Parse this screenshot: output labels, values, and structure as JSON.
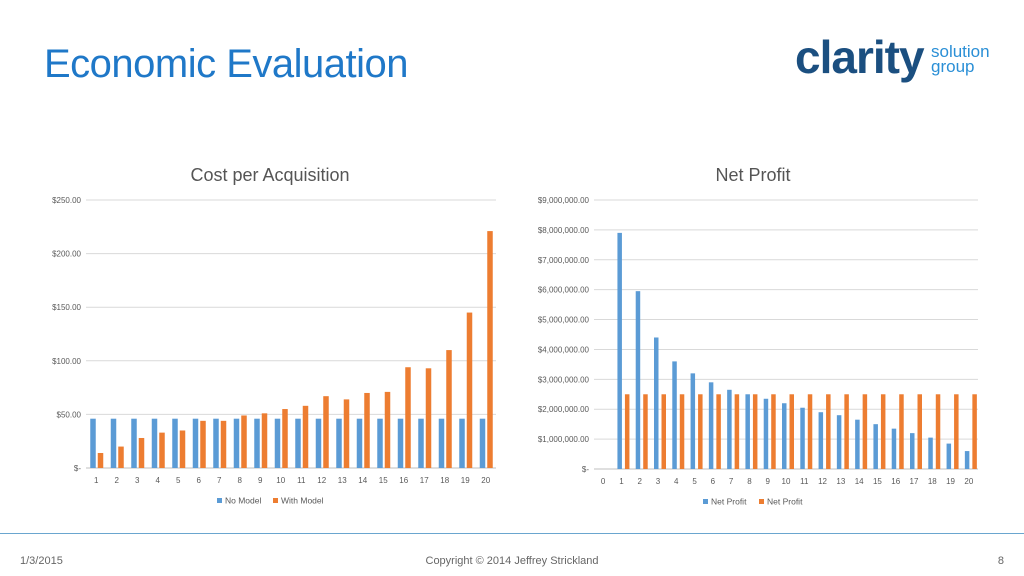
{
  "page": {
    "title": "Economic Evaluation",
    "logo": {
      "main": "clarity",
      "line1": "solution",
      "line2": "group"
    },
    "footer": {
      "date": "1/3/2015",
      "copyright": "Copyright © 2014 Jeffrey Strickland",
      "page_number": "8"
    }
  },
  "colors": {
    "blue": "#5b9bd5",
    "orange": "#ed7d31",
    "title": "#1f78c8"
  },
  "chart_data": [
    {
      "type": "bar",
      "title": "Cost per Acquisition",
      "categories": [
        "1",
        "2",
        "3",
        "4",
        "5",
        "6",
        "7",
        "8",
        "9",
        "10",
        "11",
        "12",
        "13",
        "14",
        "15",
        "16",
        "17",
        "18",
        "19",
        "20"
      ],
      "ylim": [
        0,
        250
      ],
      "yticks": [
        0,
        50,
        100,
        150,
        200,
        250
      ],
      "ytick_labels": [
        "$-",
        "$50.00",
        "$100.00",
        "$150.00",
        "$200.00",
        "$250.00"
      ],
      "series": [
        {
          "name": "No Model",
          "values": [
            46,
            46,
            46,
            46,
            46,
            46,
            46,
            46,
            46,
            46,
            46,
            46,
            46,
            46,
            46,
            46,
            46,
            46,
            46,
            46
          ]
        },
        {
          "name": "With Model",
          "values": [
            14,
            20,
            28,
            33,
            35,
            44,
            44,
            49,
            51,
            55,
            58,
            67,
            64,
            70,
            71,
            94,
            93,
            110,
            145,
            221
          ]
        }
      ],
      "legend": [
        "No Model",
        "With Model"
      ],
      "legend_position": "bottom"
    },
    {
      "type": "bar",
      "title": "Net Profit",
      "categories": [
        "0",
        "1",
        "2",
        "3",
        "4",
        "5",
        "6",
        "7",
        "8",
        "9",
        "10",
        "11",
        "12",
        "13",
        "14",
        "15",
        "16",
        "17",
        "18",
        "19",
        "20"
      ],
      "ylim": [
        0,
        9000000
      ],
      "yticks": [
        0,
        1000000,
        2000000,
        3000000,
        4000000,
        5000000,
        6000000,
        7000000,
        8000000,
        9000000
      ],
      "ytick_labels": [
        "$-",
        "$1,000,000.00",
        "$2,000,000.00",
        "$3,000,000.00",
        "$4,000,000.00",
        "$5,000,000.00",
        "$6,000,000.00",
        "$7,000,000.00",
        "$8,000,000.00",
        "$9,000,000.00"
      ],
      "series": [
        {
          "name": "Net Profit",
          "values": [
            0,
            7900000,
            5950000,
            4400000,
            3600000,
            3200000,
            2900000,
            2650000,
            2500000,
            2350000,
            2200000,
            2050000,
            1900000,
            1800000,
            1650000,
            1500000,
            1350000,
            1200000,
            1050000,
            850000,
            600000
          ]
        },
        {
          "name": "Net Profit",
          "values": [
            0,
            2500000,
            2500000,
            2500000,
            2500000,
            2500000,
            2500000,
            2500000,
            2500000,
            2500000,
            2500000,
            2500000,
            2500000,
            2500000,
            2500000,
            2500000,
            2500000,
            2500000,
            2500000,
            2500000,
            2500000
          ]
        }
      ],
      "legend": [
        "Net Profit",
        "Net Profit"
      ],
      "legend_position": "bottom"
    }
  ]
}
